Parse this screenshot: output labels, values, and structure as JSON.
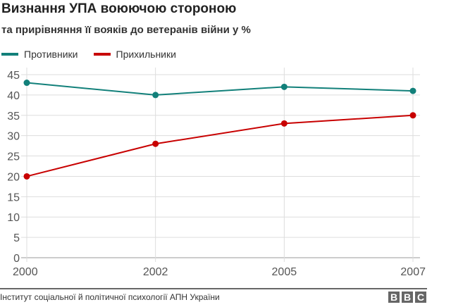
{
  "chart_data": {
    "type": "line",
    "title": "Визнання УПА воюючою стороною",
    "subtitle": "та прирівняння її вояків до ветеранів війни у %",
    "categories": [
      "2000",
      "2002",
      "2005",
      "2007"
    ],
    "series": [
      {
        "name": "Противники",
        "color": "#12807a",
        "values": [
          43,
          40,
          42,
          41
        ]
      },
      {
        "name": "Прихильники",
        "color": "#c80000",
        "values": [
          20,
          28,
          33,
          35
        ]
      }
    ],
    "ylim": [
      0,
      45
    ],
    "yticks": [
      0,
      5,
      10,
      15,
      20,
      25,
      30,
      35,
      40,
      45
    ],
    "grid": true,
    "legend": "top-left"
  },
  "footer": {
    "source": "Інститут соціальної й політичної психології АПН України",
    "logo": "BBC"
  }
}
